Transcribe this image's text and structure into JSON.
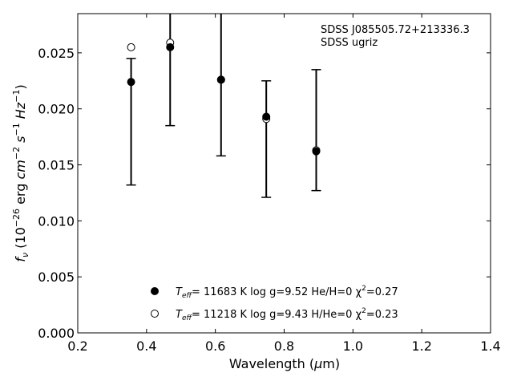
{
  "chart_data": {
    "type": "scatter",
    "annotation": {
      "object": "SDSS J085505.72+213336.3",
      "survey": "SDSS ugriz"
    },
    "xlabel": {
      "text": "Wavelength (",
      "symbol": "μ",
      "unit": "m)"
    },
    "ylabel": {
      "pre": "f",
      "sub": "ν",
      "mid1": " (10",
      "sup1": "−26",
      "mid2": " erg ",
      "cm": "cm",
      "sup2": "−2",
      "s": " s",
      "sup3": "−1",
      "hz": " Hz",
      "sup4": "−1",
      "post": ")"
    },
    "xlim": [
      0.2,
      1.4
    ],
    "ylim": [
      0.0,
      0.0285
    ],
    "xticks": [
      "0.2",
      "0.4",
      "0.6",
      "0.8",
      "1.0",
      "1.2",
      "1.4"
    ],
    "yticks": [
      "0.000",
      "0.005",
      "0.010",
      "0.015",
      "0.020",
      "0.025"
    ],
    "grid": false,
    "legend_position": "lower-center",
    "observed": {
      "x": [
        0.3551,
        0.4686,
        0.6166,
        0.748,
        0.8932
      ],
      "y": [
        0.0224,
        0.0255,
        0.0226,
        0.0192,
        0.0162
      ],
      "yerr_low": [
        0.0132,
        0.0185,
        0.0158,
        0.0121,
        0.0127
      ],
      "yerr_high": [
        0.0245,
        0.031,
        0.031,
        0.0225,
        0.0235
      ]
    },
    "series": [
      {
        "name": "T_eff= 11683 K  log g=9.52  He/H=0  χ²=0.27",
        "legend": {
          "T": "T",
          "eff": "eff",
          "rest": "= 11683 K  log g=9.52  He/H=0  χ",
          "sq": "2",
          "chi": "=0.27"
        },
        "marker": "filled-circle",
        "x": [
          0.3551,
          0.4686,
          0.6166,
          0.748,
          0.8932
        ],
        "y": [
          0.0224,
          0.0255,
          0.0226,
          0.0193,
          0.0162
        ]
      },
      {
        "name": "T_eff= 11218 K  log g=9.43  H/He=0  χ²=0.23",
        "legend": {
          "T": "T",
          "eff": "eff",
          "rest": "= 11218 K  log g=9.43  H/He=0  χ",
          "sq": "2",
          "chi": "=0.23"
        },
        "marker": "open-circle",
        "x": [
          0.3551,
          0.4686,
          0.6166,
          0.748,
          0.8932
        ],
        "y": [
          0.0255,
          0.0259,
          0.0226,
          0.0191,
          0.0163
        ]
      }
    ]
  }
}
